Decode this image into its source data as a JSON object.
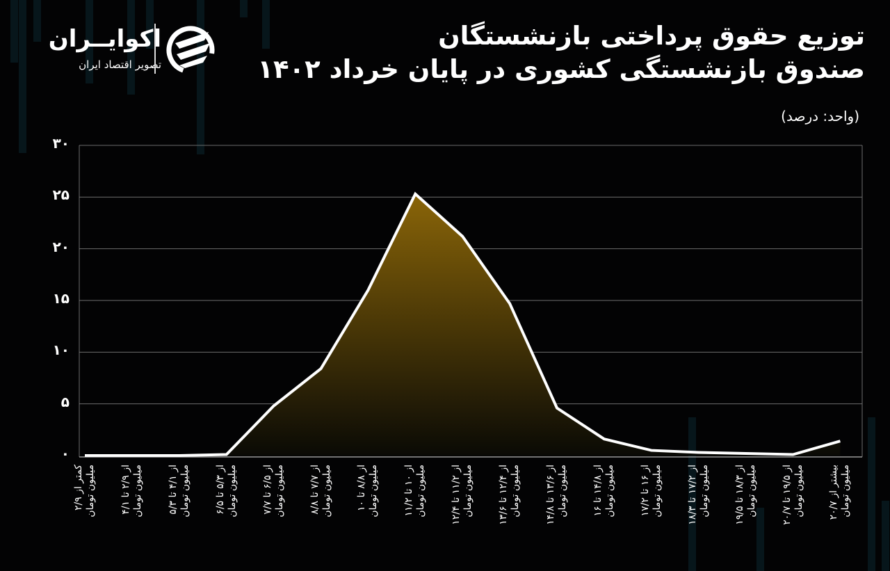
{
  "header": {
    "title_line1": "توزیع حقوق پرداختی بازنشستگان",
    "title_line2": "صندوق بازنشستگی کشوری در پایان خرداد ۱۴۰۲",
    "unit": "(واحد: درصد)"
  },
  "logo": {
    "name": "اکوایــران",
    "tagline": "تصویر اقتصاد ایران",
    "icon": "ecoiran-logo-icon"
  },
  "colors": {
    "background": "#030304",
    "line": "#ffffff",
    "fill_top": "#8a6508",
    "fill_bottom": "#0a0a05",
    "grid": "#6e6e6e"
  },
  "chart_data": {
    "type": "area",
    "title": "توزیع حقوق پرداختی بازنشستگان صندوق بازنشستگی کشوری در پایان خرداد ۱۴۰۲",
    "subtitle": "(واحد: درصد)",
    "xlabel": "",
    "ylabel": "درصد",
    "ylim": [
      0,
      30
    ],
    "yticks": [
      0,
      5,
      10,
      15,
      20,
      25,
      30
    ],
    "ytick_labels": [
      "۰",
      "۵",
      "۱۰",
      "۱۵",
      "۲۰",
      "۲۵",
      "۳۰"
    ],
    "grid": true,
    "legend": "none",
    "categories": [
      "کمتر از ۲/۹ میلیون تومان",
      "از ۲/۹ تا ۴/۱ میلیون تومان",
      "از ۴/۱ تا ۵/۳ میلیون تومان",
      "از ۵/۳ تا ۶/۵ میلیون تومان",
      "از ۶/۵ تا ۷/۷ میلیون تومان",
      "از ۷/۷ تا ۸/۸ میلیون تومان",
      "از ۸/۸ تا ۱۰ میلیون تومان",
      "از ۱۰ تا ۱۱/۲ میلیون تومان",
      "از ۱۱/۲ تا ۱۲/۴ میلیون تومان",
      "از ۱۲/۴ تا ۱۳/۶ میلیون تومان",
      "از ۱۳/۶ تا ۱۴/۸ میلیون تومان",
      "از ۱۴/۸ تا ۱۶ میلیون تومان",
      "از ۱۶ تا ۱۷/۲ میلیون تومان",
      "از ۱۷/۲ تا ۱۸/۳ میلیون تومان",
      "از ۱۸/۳ تا ۱۹/۵ میلیون تومان",
      "از ۱۹/۵ تا ۲۰/۷ میلیون تومان",
      "بیشتر از ۲۰/۷ میلیون تومان"
    ],
    "label_line1": [
      "کمتر از ۲/۹",
      "از ۲/۹ تا ۴/۱",
      "از ۴/۱ تا ۵/۳",
      "از ۵/۳ تا ۶/۵",
      "از ۶/۵ تا ۷/۷",
      "از ۷/۷ تا ۸/۸",
      "از ۸/۸ تا ۱۰",
      "از ۱۰ تا ۱۱/۲",
      "از ۱۱/۲ تا ۱۲/۴",
      "از ۱۲/۴ تا ۱۳/۶",
      "از ۱۳/۶ تا ۱۴/۸",
      "از ۱۴/۸ تا ۱۶",
      "از ۱۶ تا ۱۷/۲",
      "از ۱۷/۲ تا ۱۸/۳",
      "از ۱۸/۳ تا ۱۹/۵",
      "از ۱۹/۵ تا ۲۰/۷",
      "بیشتر از ۲۰/۷"
    ],
    "label_line2": "میلیون تومان",
    "values": [
      0.0,
      0.0,
      0.0,
      0.1,
      4.8,
      8.4,
      16.0,
      25.3,
      21.2,
      14.7,
      4.6,
      1.6,
      0.5,
      0.3,
      0.2,
      0.1,
      1.4
    ]
  }
}
